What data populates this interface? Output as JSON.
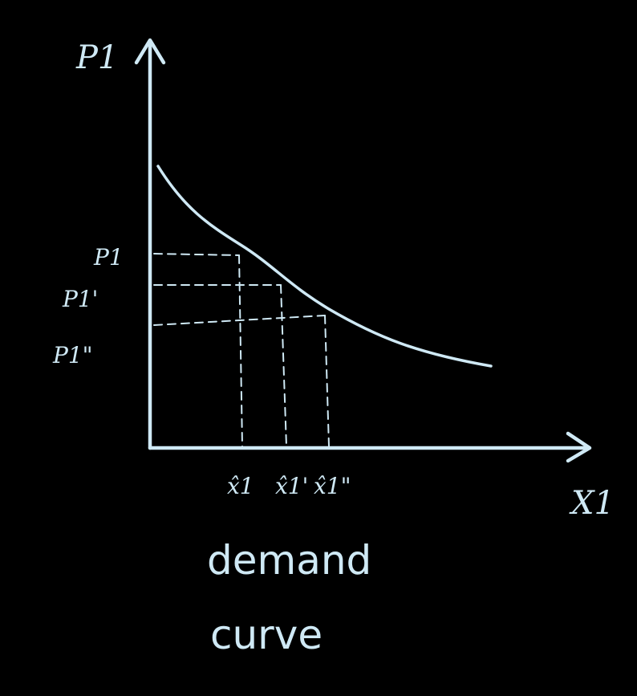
{
  "diagram": {
    "ink_color": "#cfe9f5",
    "background": "#000000",
    "y_axis_label": "P1",
    "x_axis_label": "X1",
    "price_labels": [
      "P1",
      "P1'",
      "P1\""
    ],
    "quantity_labels": [
      "x̂1",
      "x̂1'",
      "x̂1\""
    ],
    "caption_line1": "demand",
    "caption_line2": "curve"
  }
}
